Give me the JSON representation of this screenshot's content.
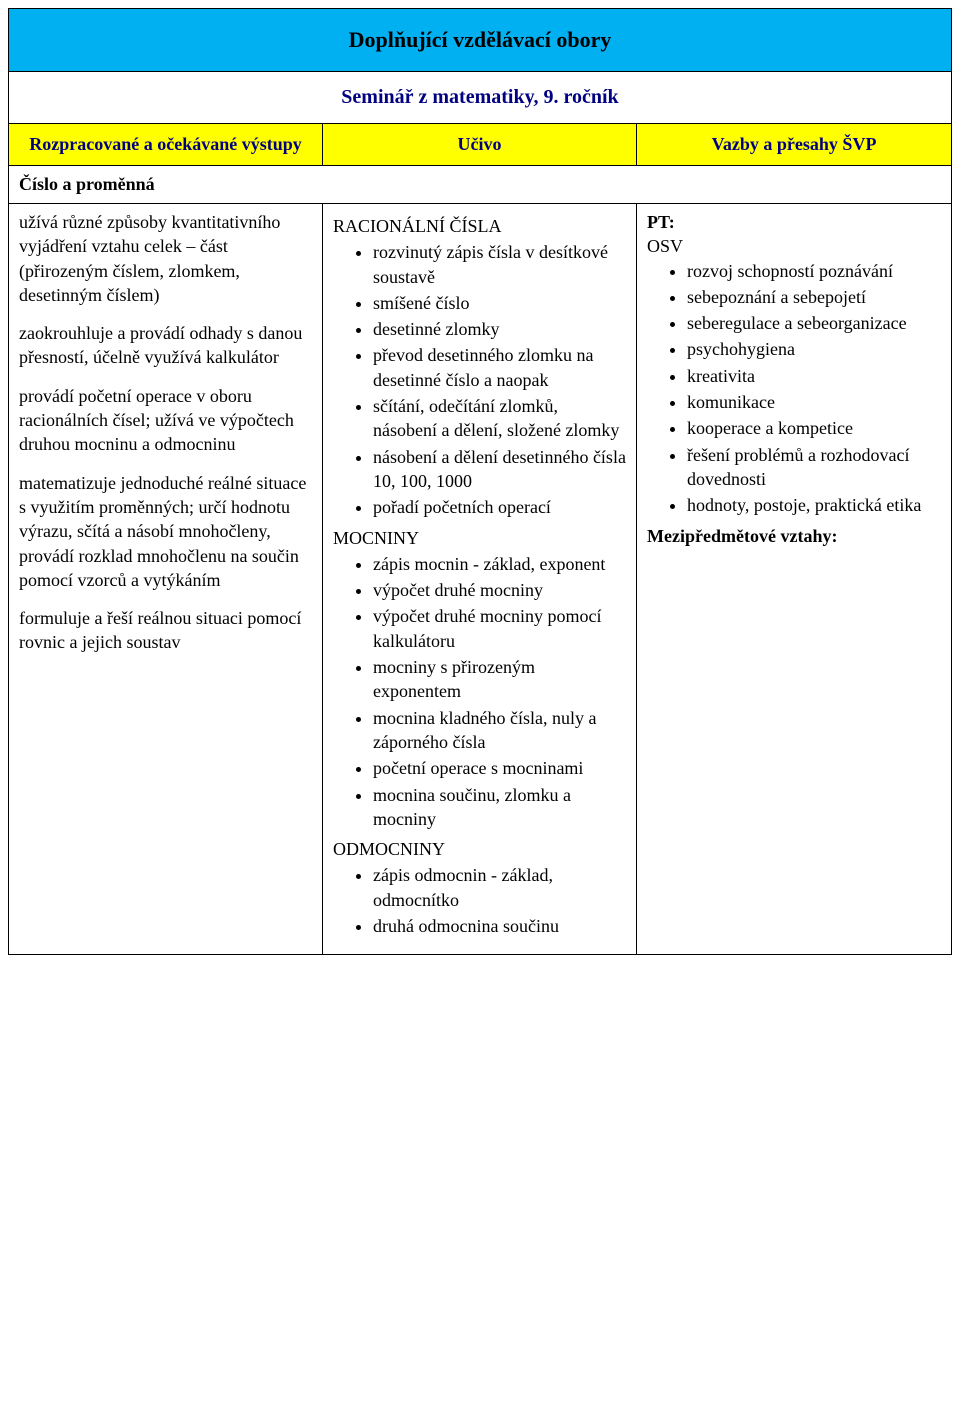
{
  "colors": {
    "title_bg": "#00b0f0",
    "header_bg": "#ffff00",
    "header_fg": "#000080",
    "border": "#000000",
    "text": "#000000",
    "bg": "#ffffff"
  },
  "title": "Doplňující vzdělávací obory",
  "subtitle": "Seminář z matematiky, 9. ročník",
  "headers": {
    "left": "Rozpracované a očekávané výstupy",
    "mid": "Učivo",
    "right": "Vazby a přesahy ŠVP"
  },
  "section": "Číslo a proměnná",
  "left_paragraphs": [
    "užívá různé způsoby kvantitativního vyjádření vztahu celek – část (přirozeným číslem, zlomkem, desetinným číslem)",
    "zaokrouhluje a provádí odhady s danou přesností, účelně využívá kalkulátor",
    "provádí početní operace v oboru racionálních čísel; užívá ve výpočtech druhou mocninu a odmocninu",
    "matematizuje jednoduché reálné situace s využitím proměnných; určí hodnotu výrazu, sčítá a násobí mnohočleny, provádí rozklad mnohočlenu na součin pomocí vzorců a vytýkáním",
    "formuluje a řeší reálnou situaci pomocí rovnic a jejich soustav"
  ],
  "mid_groups": [
    {
      "title": "RACIONÁLNÍ ČÍSLA",
      "items": [
        "rozvinutý zápis čísla v desítkové soustavě",
        "smíšené číslo",
        "desetinné zlomky",
        "převod desetinného zlomku na desetinné číslo a naopak",
        "sčítání, odečítání zlomků, násobení a dělení, složené zlomky",
        "násobení a dělení desetinného čísla 10, 100, 1000",
        "pořadí početních operací"
      ]
    },
    {
      "title": "MOCNINY",
      "items": [
        "zápis mocnin - základ, exponent",
        "výpočet druhé mocniny",
        "výpočet druhé mocniny pomocí kalkulátoru",
        "mocniny s přirozeným exponentem",
        "mocnina kladného čísla, nuly a záporného čísla",
        "početní operace s mocninami",
        "mocnina součinu, zlomku a mocniny"
      ]
    },
    {
      "title": "ODMOCNINY",
      "items": [
        "zápis odmocnin - základ, odmocnítko",
        "druhá odmocnina součinu"
      ]
    }
  ],
  "right": {
    "pt_label": "PT:",
    "osv_label": "OSV",
    "osv_items": [
      "rozvoj schopností poznávání",
      "sebepoznání a sebepojetí",
      "seberegulace a sebeorganizace",
      "psychohygiena",
      "kreativita",
      "komunikace",
      "kooperace a kompetice",
      "řešení problémů a rozhodovací dovednosti",
      "hodnoty, postoje, praktická etika"
    ],
    "mezip_label": "Mezipředmětové vztahy:"
  }
}
